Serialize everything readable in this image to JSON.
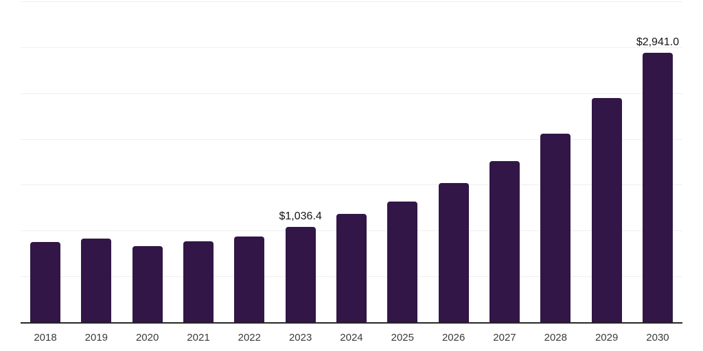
{
  "chart_data": {
    "type": "bar",
    "title": "",
    "xlabel": "",
    "ylabel": "",
    "categories": [
      "2018",
      "2019",
      "2020",
      "2021",
      "2022",
      "2023",
      "2024",
      "2025",
      "2026",
      "2027",
      "2028",
      "2029",
      "2030"
    ],
    "values": [
      875,
      915,
      830,
      885,
      935,
      1036.4,
      1180,
      1320,
      1515,
      1755,
      2055,
      2445,
      2941
    ],
    "data_labels": [
      {
        "category": "2023",
        "text": "$1,036.4"
      },
      {
        "category": "2030",
        "text": "$2,941.0"
      }
    ],
    "ylim": [
      0,
      3500
    ],
    "gridline_interval": 500,
    "grid": true,
    "legend": false,
    "colors": {
      "bar": "#311647",
      "axis_line": "#262626",
      "gridline": "#efefef",
      "data_label_text": "#141414",
      "tick_label_text": "#3a3a3a",
      "background": "#ffffff"
    }
  }
}
